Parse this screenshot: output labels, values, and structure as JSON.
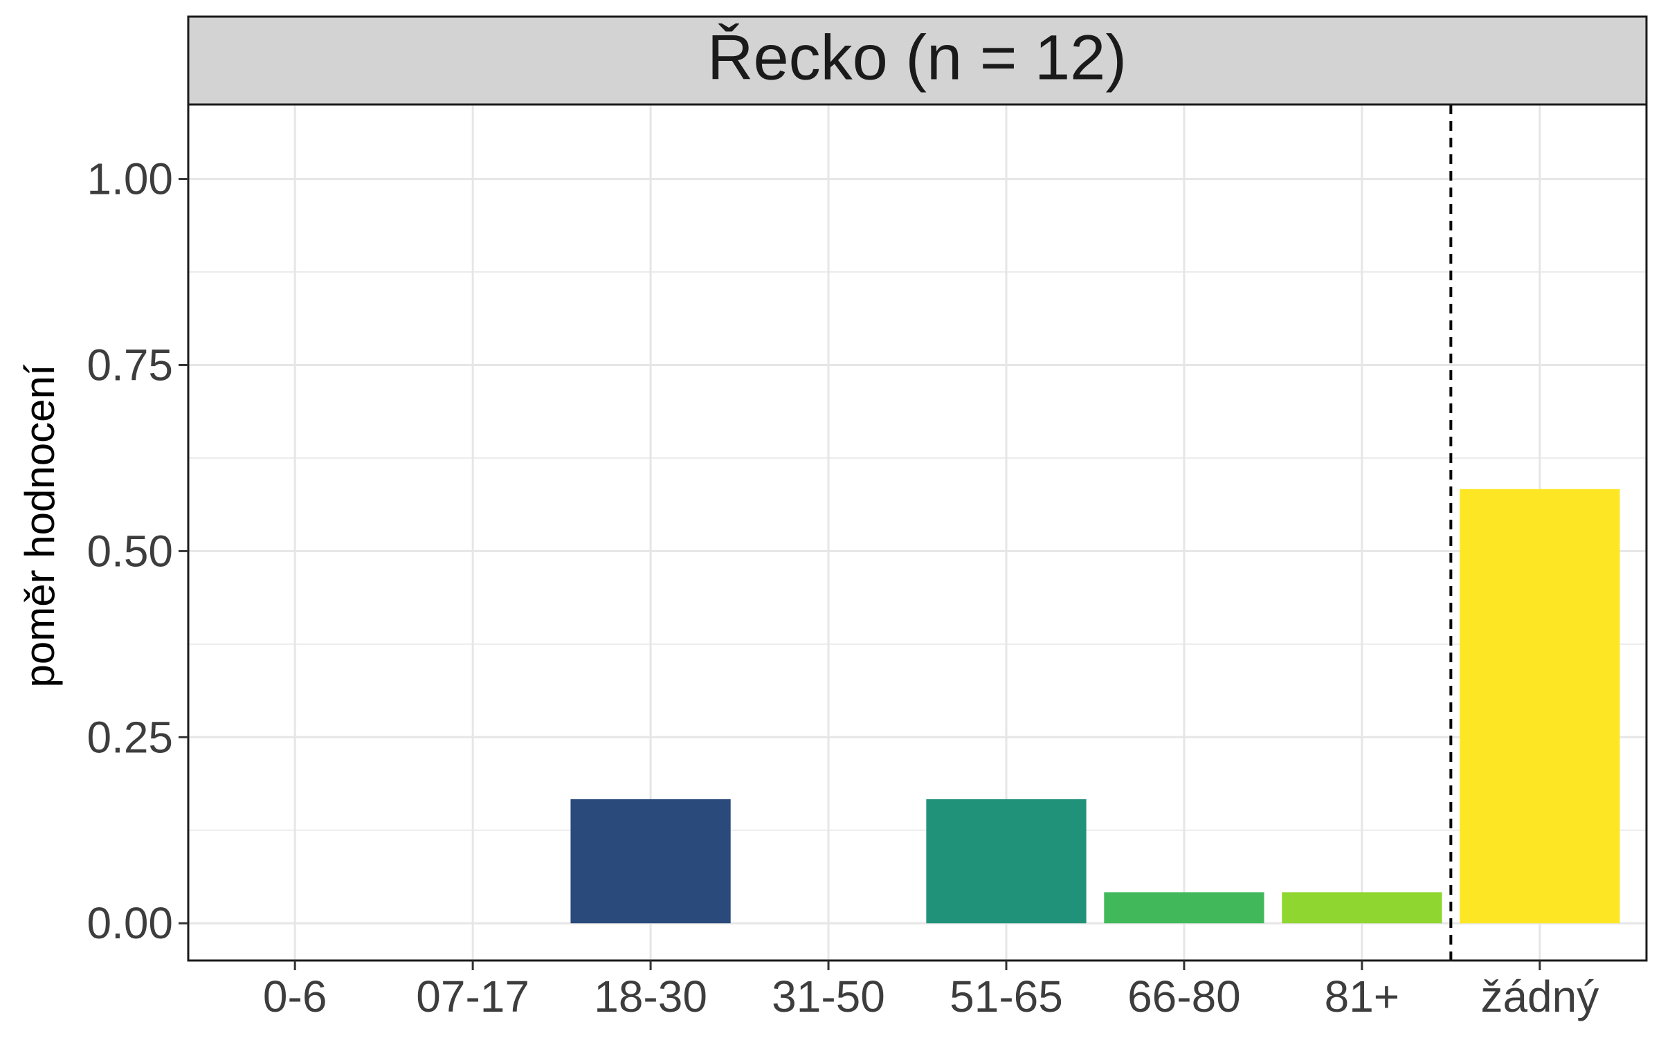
{
  "chart_data": {
    "type": "bar",
    "title": "Řecko (n = 12)",
    "xlabel": "",
    "ylabel": "poměr hodnocení",
    "categories": [
      "0-6",
      "07-17",
      "18-30",
      "31-50",
      "51-65",
      "66-80",
      "81+",
      "žádný"
    ],
    "values": [
      0,
      0,
      0.1667,
      0,
      0.1667,
      0.0417,
      0.0417,
      0.5833
    ],
    "colors": [
      "#440154",
      "#46327e",
      "#2a4a7b",
      "#277f8e",
      "#21927a",
      "#41b95a",
      "#8fd630",
      "#fde725"
    ],
    "ylim": [
      -0.05,
      1.1
    ],
    "yticks": [
      0,
      0.25,
      0.5,
      0.75,
      1.0
    ],
    "ytick_labels": [
      "0.00",
      "0.25",
      "0.50",
      "0.75",
      "1.00"
    ],
    "grid": true,
    "reference_line": {
      "type": "vertical",
      "style": "dashed",
      "between": [
        "81+",
        "žádný"
      ]
    }
  }
}
